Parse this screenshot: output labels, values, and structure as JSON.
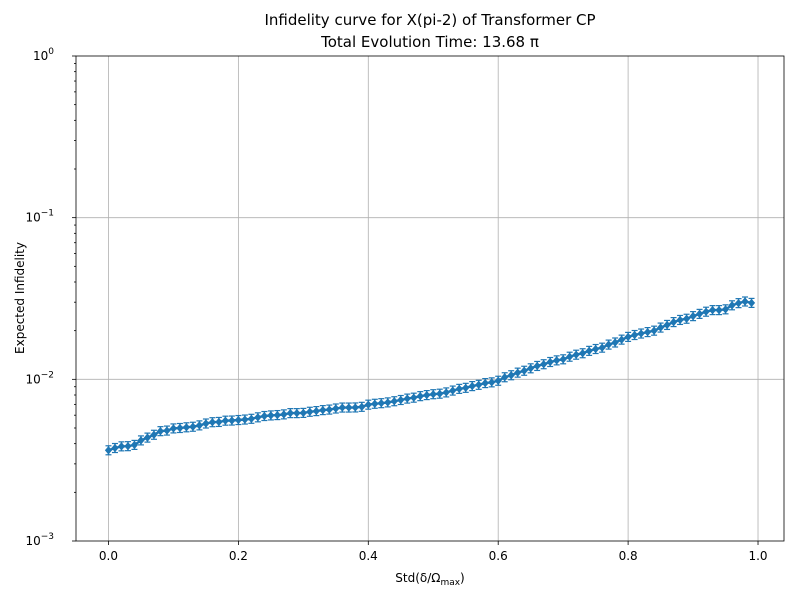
{
  "chart_data": {
    "type": "scatter",
    "title": "Infidelity curve for X(pi-2) of Transformer CP",
    "subtitle": "Total Evolution Time: 13.68 π",
    "xlabel": "Std(δ/Ω",
    "xlabel_sub": "max",
    "xlabel_close": ")",
    "ylabel": "Expected Infidelity",
    "xlim": [
      -0.05,
      1.04
    ],
    "ylim": [
      0.001,
      1
    ],
    "yscale": "log",
    "grid": true,
    "x_ticks": [
      "0.0",
      "0.2",
      "0.4",
      "0.6",
      "0.8",
      "1.0"
    ],
    "y_ticks": [
      {
        "mantissa": "10",
        "exp": "−3"
      },
      {
        "mantissa": "10",
        "exp": "−2"
      },
      {
        "mantissa": "10",
        "exp": "−1"
      },
      {
        "mantissa": "10",
        "exp": "0"
      }
    ],
    "series": [
      {
        "color": "#1f77b4",
        "marker": "diamond",
        "error_bars": true,
        "points": [
          [
            0.0,
            0.00364
          ],
          [
            0.01,
            0.00376
          ],
          [
            0.02,
            0.00385
          ],
          [
            0.03,
            0.00386
          ],
          [
            0.04,
            0.00393
          ],
          [
            0.05,
            0.00419
          ],
          [
            0.06,
            0.00436
          ],
          [
            0.07,
            0.00454
          ],
          [
            0.08,
            0.00478
          ],
          [
            0.09,
            0.00482
          ],
          [
            0.1,
            0.00497
          ],
          [
            0.11,
            0.005
          ],
          [
            0.12,
            0.00505
          ],
          [
            0.13,
            0.00509
          ],
          [
            0.14,
            0.00519
          ],
          [
            0.15,
            0.00533
          ],
          [
            0.16,
            0.00543
          ],
          [
            0.17,
            0.00545
          ],
          [
            0.18,
            0.00555
          ],
          [
            0.19,
            0.00556
          ],
          [
            0.2,
            0.0056
          ],
          [
            0.21,
            0.00564
          ],
          [
            0.22,
            0.0057
          ],
          [
            0.23,
            0.00582
          ],
          [
            0.24,
            0.00593
          ],
          [
            0.25,
            0.00598
          ],
          [
            0.26,
            0.00601
          ],
          [
            0.27,
            0.00607
          ],
          [
            0.28,
            0.00618
          ],
          [
            0.29,
            0.00618
          ],
          [
            0.3,
            0.0062
          ],
          [
            0.31,
            0.0063
          ],
          [
            0.32,
            0.00636
          ],
          [
            0.33,
            0.00645
          ],
          [
            0.34,
            0.0065
          ],
          [
            0.35,
            0.0066
          ],
          [
            0.36,
            0.00669
          ],
          [
            0.37,
            0.00669
          ],
          [
            0.38,
            0.0067
          ],
          [
            0.39,
            0.00676
          ],
          [
            0.4,
            0.00697
          ],
          [
            0.41,
            0.00706
          ],
          [
            0.42,
            0.00712
          ],
          [
            0.43,
            0.0072
          ],
          [
            0.44,
            0.00732
          ],
          [
            0.45,
            0.00745
          ],
          [
            0.46,
            0.0076
          ],
          [
            0.47,
            0.0077
          ],
          [
            0.48,
            0.00787
          ],
          [
            0.49,
            0.00799
          ],
          [
            0.5,
            0.00809
          ],
          [
            0.51,
            0.00815
          ],
          [
            0.52,
            0.0083
          ],
          [
            0.53,
            0.00852
          ],
          [
            0.54,
            0.00873
          ],
          [
            0.55,
            0.00886
          ],
          [
            0.56,
            0.00908
          ],
          [
            0.57,
            0.00925
          ],
          [
            0.58,
            0.00948
          ],
          [
            0.59,
            0.00958
          ],
          [
            0.6,
            0.0098
          ],
          [
            0.61,
            0.0103
          ],
          [
            0.62,
            0.0106
          ],
          [
            0.63,
            0.011
          ],
          [
            0.64,
            0.0113
          ],
          [
            0.65,
            0.0117
          ],
          [
            0.66,
            0.0121
          ],
          [
            0.67,
            0.0124
          ],
          [
            0.68,
            0.0128
          ],
          [
            0.69,
            0.0131
          ],
          [
            0.7,
            0.0133
          ],
          [
            0.71,
            0.0138
          ],
          [
            0.72,
            0.0142
          ],
          [
            0.73,
            0.0145
          ],
          [
            0.74,
            0.015
          ],
          [
            0.75,
            0.0154
          ],
          [
            0.76,
            0.0157
          ],
          [
            0.77,
            0.0164
          ],
          [
            0.78,
            0.0169
          ],
          [
            0.79,
            0.0176
          ],
          [
            0.8,
            0.0183
          ],
          [
            0.81,
            0.0188
          ],
          [
            0.82,
            0.0192
          ],
          [
            0.83,
            0.0196
          ],
          [
            0.84,
            0.02
          ],
          [
            0.85,
            0.0209
          ],
          [
            0.86,
            0.0217
          ],
          [
            0.87,
            0.0226
          ],
          [
            0.88,
            0.0233
          ],
          [
            0.89,
            0.0237
          ],
          [
            0.9,
            0.0246
          ],
          [
            0.91,
            0.0254
          ],
          [
            0.92,
            0.0262
          ],
          [
            0.93,
            0.0268
          ],
          [
            0.94,
            0.0268
          ],
          [
            0.95,
            0.0271
          ],
          [
            0.96,
            0.0287
          ],
          [
            0.97,
            0.0296
          ],
          [
            0.98,
            0.0303
          ],
          [
            0.99,
            0.0297
          ]
        ]
      }
    ]
  }
}
